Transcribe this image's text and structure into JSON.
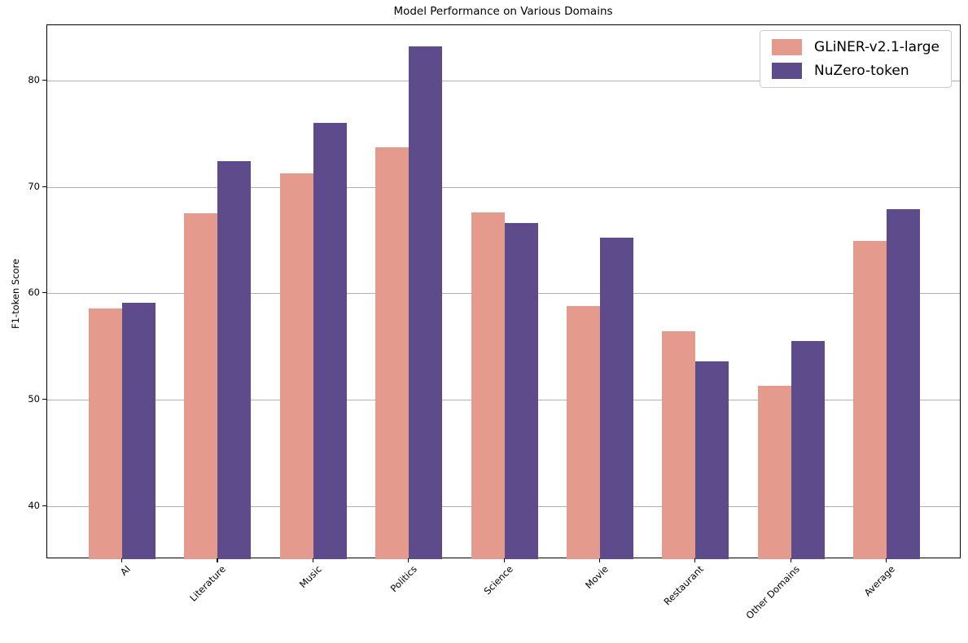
{
  "chart_data": {
    "type": "bar",
    "title": "Model Performance on Various Domains",
    "xlabel": "",
    "ylabel": "F1-token Score",
    "categories": [
      "AI",
      "Literature",
      "Music",
      "Politics",
      "Science",
      "Movie",
      "Restaurant",
      "Other Domains",
      "Average"
    ],
    "series": [
      {
        "name": "GLiNER-v2.1-large",
        "color": "#e59a8e",
        "values": [
          58.6,
          67.5,
          71.3,
          73.7,
          67.6,
          58.8,
          56.4,
          51.3,
          64.9
        ]
      },
      {
        "name": "NuZero-token",
        "color": "#5e4b8c",
        "values": [
          59.1,
          72.4,
          76.0,
          83.2,
          66.6,
          65.2,
          53.6,
          55.5,
          67.9
        ]
      }
    ],
    "ylim": [
      35,
      85.2
    ],
    "yticks": [
      40,
      50,
      60,
      70,
      80
    ],
    "grid": true,
    "grid_color": "#b0b0b0",
    "axis_color": "#000000",
    "legend_position": "upper right",
    "x_label_rotation_deg": 45
  }
}
